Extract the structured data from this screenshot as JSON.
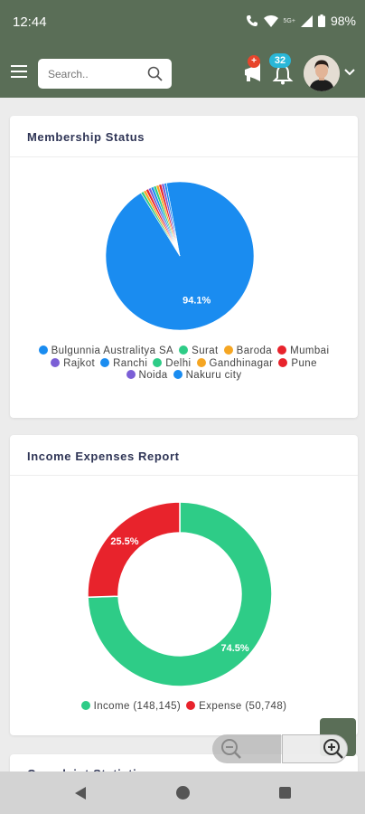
{
  "status_bar": {
    "time": "12:44",
    "network": "5G+",
    "battery": "98%"
  },
  "header": {
    "search_placeholder": "Search..",
    "announcement_badge": "+",
    "notification_count": "32"
  },
  "colors": {
    "header_bg": "#5a6e57",
    "blue": "#1a8cf0",
    "green": "#2ecc87",
    "red": "#e8232c",
    "orange": "#f5a623",
    "purple": "#7b5fd6"
  },
  "icons": [
    "menu-icon",
    "search-icon",
    "megaphone-icon",
    "bell-icon",
    "chevron-down-icon",
    "zoom-out-icon",
    "zoom-in-icon"
  ],
  "membership": {
    "title": "Membership Status",
    "legend": [
      {
        "label": "Bulgunnia Australitya SA",
        "color": "#1a8cf0"
      },
      {
        "label": "Surat",
        "color": "#2ecc87"
      },
      {
        "label": "Baroda",
        "color": "#f5a623"
      },
      {
        "label": "Mumbai",
        "color": "#e8232c"
      },
      {
        "label": "Rajkot",
        "color": "#7b5fd6"
      },
      {
        "label": "Ranchi",
        "color": "#1a8cf0"
      },
      {
        "label": "Delhi",
        "color": "#2ecc87"
      },
      {
        "label": "Gandhinagar",
        "color": "#f5a623"
      },
      {
        "label": "Pune",
        "color": "#e8232c"
      },
      {
        "label": "Noida",
        "color": "#7b5fd6"
      },
      {
        "label": "Nakuru city",
        "color": "#1a8cf0"
      }
    ]
  },
  "income": {
    "title": "Income Expenses Report",
    "legend": [
      {
        "label": "Income (148,145)",
        "color": "#2ecc87"
      },
      {
        "label": "Expense (50,748)",
        "color": "#e8232c"
      }
    ]
  },
  "complaint": {
    "title": "Complaint Statistics"
  },
  "chart_data": [
    {
      "type": "pie",
      "title": "Membership Status",
      "labels": [
        "Bulgunnia Australitya SA",
        "Surat",
        "Baroda",
        "Mumbai",
        "Rajkot",
        "Ranchi",
        "Delhi",
        "Gandhinagar",
        "Pune",
        "Noida",
        "Nakuru city"
      ],
      "values": [
        94.1,
        0.6,
        0.6,
        0.6,
        0.6,
        0.6,
        0.6,
        0.6,
        0.6,
        0.6,
        0.5
      ],
      "data_labels": [
        "94.1%"
      ],
      "legend": "bottom"
    },
    {
      "type": "pie",
      "subtype": "donut",
      "title": "Income Expenses Report",
      "labels": [
        "Income",
        "Expense"
      ],
      "values": [
        148145,
        50748
      ],
      "data_labels": [
        "74.5%",
        "25.5%"
      ],
      "legend": "bottom"
    }
  ]
}
